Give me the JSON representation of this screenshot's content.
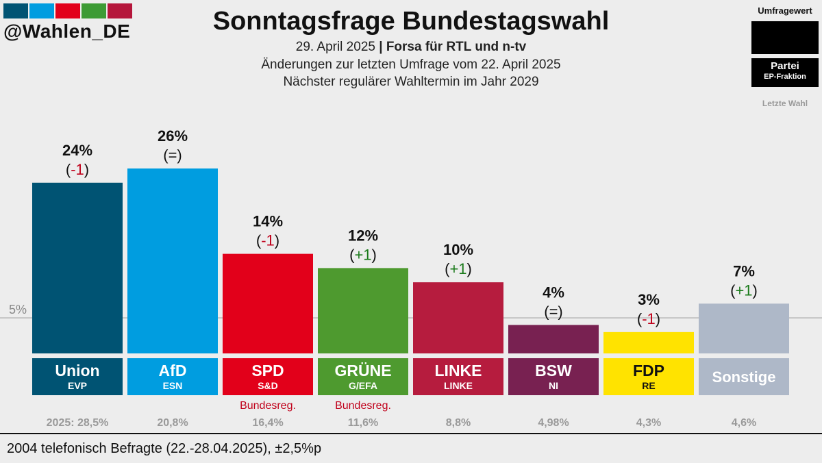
{
  "brand": {
    "handle": "@Wahlen_DE",
    "logo_colors": [
      "#005373",
      "#009de0",
      "#e2001a",
      "#3d9b35",
      "#b5163b"
    ]
  },
  "header": {
    "title": "Sonntagsfrage Bundestagswahl",
    "date": "29. April 2025",
    "separator": " | ",
    "institute": "Forsa für RTL und n-tv",
    "change_note": "Änderungen zur letzten Umfrage vom 22. April 2025",
    "next_election": "Nächster regulärer Wahltermin im Jahr 2029"
  },
  "legend": {
    "umfragewert": "Umfragewert",
    "partei": "Partei",
    "ep_fraktion": "EP-Fraktion",
    "letzte_wahl": "Letzte Wahl"
  },
  "chart_data": {
    "type": "bar",
    "unit": "%",
    "threshold": {
      "value": 5,
      "label": "5%"
    },
    "ylim": [
      0,
      26
    ],
    "parties": [
      {
        "name": "Union",
        "ep": "EVP",
        "value": 24,
        "value_label": "24%",
        "change": "-1",
        "color": "#005373",
        "label_color": "#ffffff",
        "last_election": "2025: 28,5%",
        "note": ""
      },
      {
        "name": "AfD",
        "ep": "ESN",
        "value": 26,
        "value_label": "26%",
        "change": "=",
        "color": "#009de0",
        "label_color": "#ffffff",
        "last_election": "20,8%",
        "note": ""
      },
      {
        "name": "SPD",
        "ep": "S&D",
        "value": 14,
        "value_label": "14%",
        "change": "-1",
        "color": "#e2001a",
        "label_color": "#ffffff",
        "last_election": "16,4%",
        "note": "Bundesreg."
      },
      {
        "name": "GRÜNE",
        "ep": "G/EFA",
        "value": 12,
        "value_label": "12%",
        "change": "+1",
        "color": "#4e9a2f",
        "label_color": "#ffffff",
        "last_election": "11,6%",
        "note": "Bundesreg."
      },
      {
        "name": "LINKE",
        "ep": "LINKE",
        "value": 10,
        "value_label": "10%",
        "change": "+1",
        "color": "#b61c3e",
        "label_color": "#ffffff",
        "last_election": "8,8%",
        "note": ""
      },
      {
        "name": "BSW",
        "ep": "NI",
        "value": 4,
        "value_label": "4%",
        "change": "=",
        "color": "#782151",
        "label_color": "#ffffff",
        "last_election": "4,98%",
        "note": ""
      },
      {
        "name": "FDP",
        "ep": "RE",
        "value": 3,
        "value_label": "3%",
        "change": "-1",
        "color": "#ffe300",
        "label_color": "#111111",
        "last_election": "4,3%",
        "note": ""
      },
      {
        "name": "Sonstige",
        "ep": "",
        "value": 7,
        "value_label": "7%",
        "change": "+1",
        "color": "#aeb8c8",
        "label_color": "#ffffff",
        "last_election": "4,6%",
        "note": ""
      }
    ],
    "change_colors": {
      "negative": "#c0001a",
      "positive": "#1a7a1a",
      "neutral": "#111111"
    }
  },
  "footer": {
    "text": "2004 telefonisch Befragte (22.-28.04.2025), ±2,5%p"
  }
}
